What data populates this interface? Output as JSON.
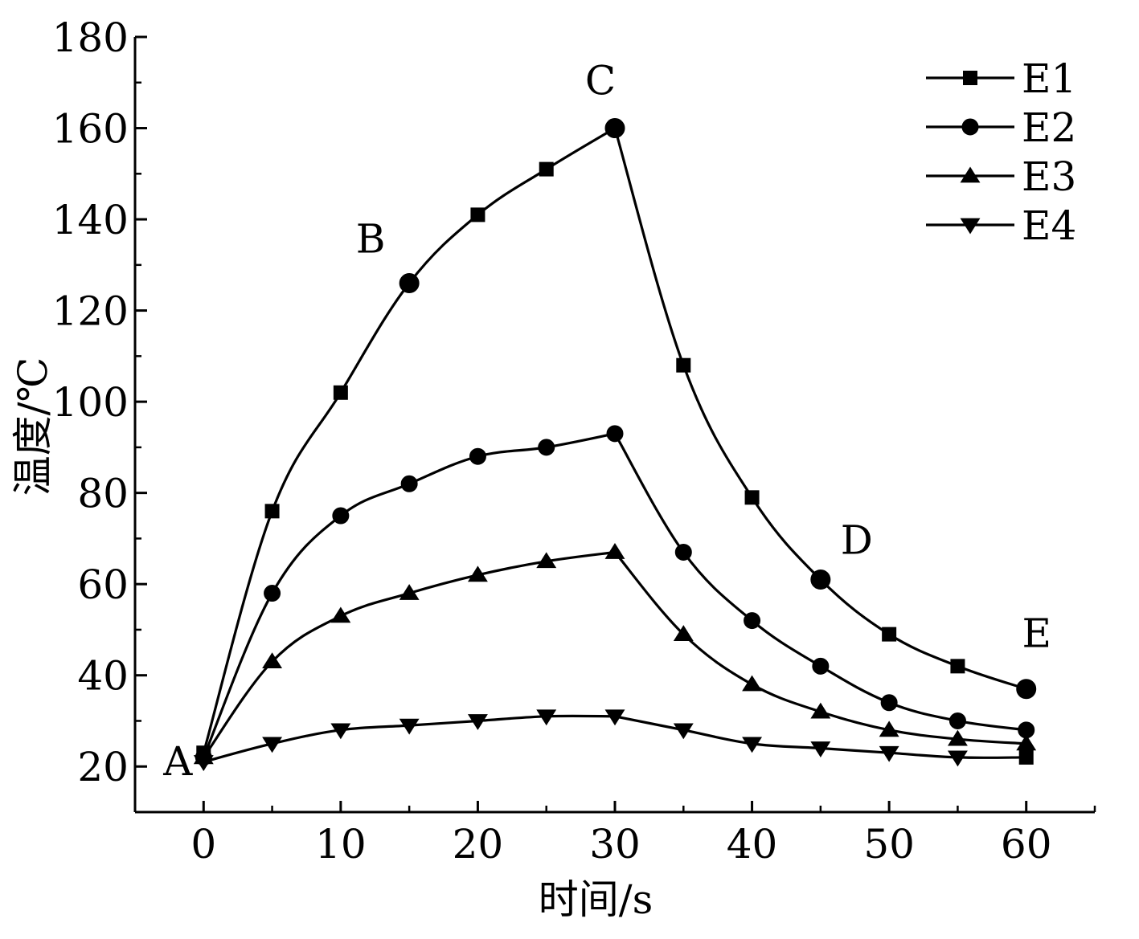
{
  "chart_data": {
    "type": "line",
    "title": "",
    "xlabel": "时间/s",
    "ylabel": "温度/℃",
    "xlim": [
      -5,
      65
    ],
    "ylim": [
      10,
      180
    ],
    "xticks": [
      0,
      10,
      20,
      30,
      40,
      50,
      60
    ],
    "yticks": [
      20,
      40,
      60,
      80,
      100,
      120,
      140,
      160,
      180
    ],
    "x": [
      0,
      5,
      10,
      15,
      20,
      25,
      30,
      35,
      40,
      45,
      50,
      55,
      60
    ],
    "series": [
      {
        "name": "E1",
        "marker": "square",
        "values": [
          23,
          76,
          102,
          126,
          141,
          151,
          160,
          108,
          79,
          61,
          49,
          42,
          37
        ]
      },
      {
        "name": "E2",
        "marker": "circle",
        "values": [
          22,
          58,
          75,
          82,
          88,
          90,
          93,
          67,
          52,
          42,
          34,
          30,
          28
        ]
      },
      {
        "name": "E3",
        "marker": "triangle-up",
        "values": [
          22,
          43,
          53,
          58,
          62,
          65,
          67,
          49,
          38,
          32,
          28,
          26,
          25
        ]
      },
      {
        "name": "E4",
        "marker": "triangle-down",
        "values": [
          21,
          25,
          28,
          29,
          30,
          31,
          31,
          28,
          25,
          24,
          23,
          22,
          22
        ]
      }
    ],
    "annotations": [
      {
        "text": "A",
        "x": 0,
        "y": 22
      },
      {
        "text": "B",
        "x": 15,
        "y": 126
      },
      {
        "text": "C",
        "x": 30,
        "y": 160
      },
      {
        "text": "D",
        "x": 45,
        "y": 61
      },
      {
        "text": "E",
        "x": 60,
        "y": 37
      }
    ],
    "legend": "top-right",
    "grid": false
  }
}
